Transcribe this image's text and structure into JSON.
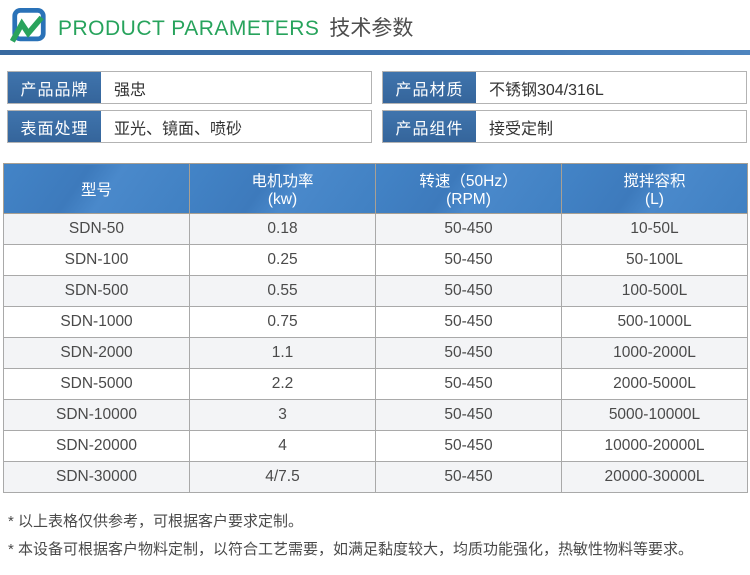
{
  "header": {
    "title_en": "PRODUCT PARAMETERS",
    "title_zh": "技术参数"
  },
  "fields": [
    {
      "label": "产品品牌",
      "value": "强忠"
    },
    {
      "label": "产品材质",
      "value": "不锈钢304/316L"
    },
    {
      "label": "表面处理",
      "value": "亚光、镜面、喷砂"
    },
    {
      "label": "产品组件",
      "value": "接受定制"
    }
  ],
  "table": {
    "columns": [
      {
        "line1": "型号",
        "line2": ""
      },
      {
        "line1": "电机功率",
        "line2": "(kw)"
      },
      {
        "line1": "转速（50Hz）",
        "line2": "(RPM)"
      },
      {
        "line1": "搅拌容积",
        "line2": "(L)"
      }
    ],
    "rows": [
      [
        "SDN-50",
        "0.18",
        "50-450",
        "10-50L"
      ],
      [
        "SDN-100",
        "0.25",
        "50-450",
        "50-100L"
      ],
      [
        "SDN-500",
        "0.55",
        "50-450",
        "100-500L"
      ],
      [
        "SDN-1000",
        "0.75",
        "50-450",
        "500-1000L"
      ],
      [
        "SDN-2000",
        "1.1",
        "50-450",
        "1000-2000L"
      ],
      [
        "SDN-5000",
        "2.2",
        "50-450",
        "2000-5000L"
      ],
      [
        "SDN-10000",
        "3",
        "50-450",
        "5000-10000L"
      ],
      [
        "SDN-20000",
        "4",
        "50-450",
        "10000-20000L"
      ],
      [
        "SDN-30000",
        "4/7.5",
        "50-450",
        "20000-30000L"
      ]
    ]
  },
  "notes": [
    "* 以上表格仅供参考，可根据客户要求定制。",
    "* 本设备可根据客户物料定制，以符合工艺需要，如满足黏度较大，均质功能强化，热敏性物料等要求。"
  ],
  "colors": {
    "accent_green": "#27a35c",
    "label_blue": "#3a6da6",
    "table_header_blue": "#4282c5",
    "divider_blue": "#3d72ad",
    "alt_row": "#f3f4f6"
  }
}
